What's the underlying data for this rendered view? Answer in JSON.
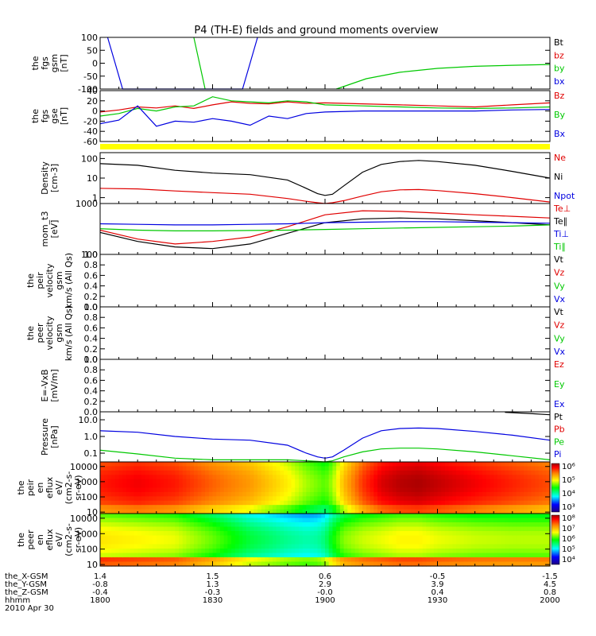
{
  "title": "P4 (TH-E) fields and ground moments overview",
  "colors": {
    "black": "#000000",
    "red": "#e00000",
    "green": "#00c800",
    "blue": "#0000e0",
    "yellow": "#ffff00"
  },
  "chart_data": [
    {
      "type": "line",
      "panel": "fgs_gsm",
      "ylabel_lines": [
        "the",
        "fgs",
        "gsm",
        "[nT]"
      ],
      "ylim": [
        -100,
        100
      ],
      "y_ticks": [
        "100",
        "50",
        "0",
        "-50",
        "-100"
      ],
      "legend": [
        {
          "label": "Bt",
          "color": "#000000"
        },
        {
          "label": "bz",
          "color": "#e00000"
        },
        {
          "label": "by",
          "color": "#00c800"
        },
        {
          "label": "bx",
          "color": "#0000e0"
        }
      ],
      "series": [
        {
          "name": "by",
          "color": "#00c800",
          "x": [
            0,
            25,
            28,
            55,
            63,
            71,
            80,
            90,
            100,
            110,
            120
          ],
          "y": [
            null,
            100,
            -100,
            null,
            -100,
            -60,
            -35,
            -20,
            -12,
            -8,
            -5
          ]
        },
        {
          "name": "bx",
          "color": "#0000e0",
          "x": [
            2,
            4,
            6,
            38,
            40,
            42
          ],
          "y": [
            100,
            0,
            -100,
            -100,
            0,
            100
          ]
        }
      ]
    },
    {
      "type": "line",
      "panel": "fgs_gse",
      "ylabel_lines": [
        "the",
        "fgs",
        "gse",
        "[nT]"
      ],
      "ylim": [
        -60,
        40
      ],
      "y_ticks": [
        "40",
        "20",
        "0",
        "-20",
        "-40",
        "-60"
      ],
      "legend": [
        {
          "label": "Bz",
          "color": "#e00000"
        },
        {
          "label": "By",
          "color": "#00c800"
        },
        {
          "label": "Bx",
          "color": "#0000e0"
        }
      ],
      "series": [
        {
          "name": "Bz",
          "color": "#e00000",
          "x": [
            0,
            5,
            10,
            15,
            20,
            25,
            30,
            35,
            40,
            45,
            50,
            55,
            60,
            70,
            80,
            90,
            100,
            110,
            120
          ],
          "y": [
            -2,
            2,
            8,
            6,
            10,
            5,
            12,
            18,
            15,
            14,
            18,
            15,
            16,
            14,
            12,
            10,
            8,
            12,
            16
          ]
        },
        {
          "name": "By",
          "color": "#00c800",
          "x": [
            0,
            5,
            10,
            15,
            20,
            25,
            30,
            35,
            40,
            45,
            50,
            55,
            60,
            70,
            80,
            90,
            100,
            110,
            120
          ],
          "y": [
            -10,
            -5,
            5,
            0,
            8,
            10,
            28,
            20,
            18,
            16,
            20,
            18,
            12,
            10,
            8,
            6,
            5,
            6,
            8
          ]
        },
        {
          "name": "Bx",
          "color": "#0000e0",
          "x": [
            0,
            5,
            10,
            15,
            20,
            25,
            30,
            35,
            40,
            45,
            50,
            55,
            60,
            70,
            80,
            90,
            100,
            110,
            120
          ],
          "y": [
            -25,
            -18,
            10,
            -30,
            -20,
            -22,
            -15,
            -20,
            -28,
            -10,
            -15,
            -5,
            -2,
            0,
            0,
            0,
            0,
            2,
            3
          ]
        }
      ]
    },
    {
      "type": "line",
      "panel": "density",
      "ylabel_lines": [
        "Density",
        "[cm-3]"
      ],
      "yscale": "log",
      "ylim": [
        0.5,
        200
      ],
      "y_ticks": [
        "100",
        "10",
        "1"
      ],
      "legend": [
        {
          "label": "Ne",
          "color": "#e00000"
        },
        {
          "label": "Ni",
          "color": "#000000"
        },
        {
          "label": "Npot",
          "color": "#0000e0"
        }
      ],
      "series": [
        {
          "name": "Ni",
          "color": "#000000",
          "x": [
            0,
            10,
            20,
            30,
            40,
            50,
            55,
            58,
            60,
            62,
            65,
            70,
            75,
            80,
            85,
            90,
            100,
            110,
            120
          ],
          "y": [
            55,
            45,
            25,
            18,
            15,
            8,
            3,
            1.6,
            1.3,
            1.5,
            4,
            20,
            50,
            70,
            80,
            70,
            45,
            22,
            10
          ]
        },
        {
          "name": "Ne",
          "color": "#e00000",
          "x": [
            0,
            10,
            20,
            30,
            40,
            50,
            55,
            58,
            60,
            62,
            65,
            70,
            75,
            80,
            85,
            90,
            100,
            110,
            120
          ],
          "y": [
            3,
            2.8,
            2.2,
            1.8,
            1.5,
            0.9,
            0.65,
            0.55,
            0.5,
            0.55,
            0.7,
            1.2,
            2,
            2.5,
            2.6,
            2.3,
            1.6,
            1,
            0.6
          ]
        }
      ]
    },
    {
      "type": "line",
      "panel": "temperature",
      "ylabel_lines": [
        "mom_t3",
        "[eV]"
      ],
      "yscale": "log",
      "ylim": [
        100,
        1000
      ],
      "y_ticks": [
        "1000",
        "100"
      ],
      "legend": [
        {
          "label": "Te⊥",
          "color": "#e00000"
        },
        {
          "label": "Te∥",
          "color": "#000000"
        },
        {
          "label": "Ti⊥",
          "color": "#0000e0"
        },
        {
          "label": "Ti∥",
          "color": "#00c800"
        }
      ],
      "series": [
        {
          "name": "Te⊥",
          "color": "#e00000",
          "x": [
            0,
            10,
            20,
            30,
            40,
            50,
            60,
            70,
            80,
            90,
            100,
            110,
            120
          ],
          "y": [
            300,
            200,
            160,
            180,
            220,
            350,
            600,
            720,
            700,
            650,
            600,
            560,
            520
          ]
        },
        {
          "name": "Te∥",
          "color": "#000000",
          "x": [
            0,
            10,
            20,
            30,
            40,
            50,
            60,
            70,
            80,
            90,
            100,
            110,
            120
          ],
          "y": [
            270,
            180,
            140,
            130,
            160,
            260,
            420,
            500,
            520,
            500,
            460,
            420,
            380
          ]
        },
        {
          "name": "Ti⊥",
          "color": "#0000e0",
          "x": [
            0,
            10,
            20,
            30,
            40,
            50,
            60,
            70,
            80,
            90,
            100,
            110,
            120
          ],
          "y": [
            400,
            390,
            380,
            380,
            390,
            400,
            420,
            430,
            440,
            440,
            430,
            420,
            410
          ]
        },
        {
          "name": "Ti∥",
          "color": "#00c800",
          "x": [
            0,
            10,
            20,
            30,
            40,
            50,
            60,
            70,
            80,
            90,
            100,
            110,
            120
          ],
          "y": [
            320,
            300,
            290,
            290,
            295,
            300,
            310,
            320,
            330,
            340,
            350,
            360,
            380
          ]
        }
      ]
    },
    {
      "type": "line",
      "panel": "peir_velocity",
      "ylabel_lines": [
        "the",
        "peir",
        "velocity",
        "gsm",
        "km/s (All Qs)"
      ],
      "ylim": [
        0,
        1
      ],
      "y_ticks": [
        "1.0",
        "0.8",
        "0.6",
        "0.4",
        "0.2",
        "0.0"
      ],
      "legend": [
        {
          "label": "Vt",
          "color": "#000000"
        },
        {
          "label": "Vz",
          "color": "#e00000"
        },
        {
          "label": "Vy",
          "color": "#00c800"
        },
        {
          "label": "Vx",
          "color": "#0000e0"
        }
      ],
      "series": []
    },
    {
      "type": "line",
      "panel": "peer_velocity",
      "ylabel_lines": [
        "the",
        "peer",
        "velocity",
        "gsm",
        "km/s (All Qs)"
      ],
      "ylim": [
        0,
        1
      ],
      "y_ticks": [
        "1.0",
        "0.8",
        "0.6",
        "0.4",
        "0.2",
        "0.0"
      ],
      "legend": [
        {
          "label": "Vt",
          "color": "#000000"
        },
        {
          "label": "Vz",
          "color": "#e00000"
        },
        {
          "label": "Vy",
          "color": "#00c800"
        },
        {
          "label": "Vx",
          "color": "#0000e0"
        }
      ],
      "series": []
    },
    {
      "type": "line",
      "panel": "efield",
      "ylabel_lines": [
        "E=-VxB",
        "[mV/m]"
      ],
      "ylim": [
        0,
        1
      ],
      "y_ticks": [
        "1.0",
        "0.8",
        "0.6",
        "0.4",
        "0.2",
        "0.0"
      ],
      "legend": [
        {
          "label": "Ez",
          "color": "#e00000"
        },
        {
          "label": "Ey",
          "color": "#00c800"
        },
        {
          "label": "Ex",
          "color": "#0000e0"
        }
      ],
      "series": []
    },
    {
      "type": "line",
      "panel": "pressure",
      "ylabel_lines": [
        "Pressure",
        "[nPa]"
      ],
      "yscale": "log",
      "ylim": [
        0.03,
        30
      ],
      "y_ticks": [
        "10.0",
        "1.0",
        "0.1"
      ],
      "legend": [
        {
          "label": "Pt",
          "color": "#000000"
        },
        {
          "label": "Pb",
          "color": "#e00000"
        },
        {
          "label": "Pe",
          "color": "#00c800"
        },
        {
          "label": "Pi",
          "color": "#0000e0"
        }
      ],
      "series": [
        {
          "name": "Pi",
          "color": "#0000e0",
          "x": [
            0,
            10,
            20,
            30,
            40,
            50,
            55,
            58,
            60,
            62,
            65,
            70,
            75,
            80,
            85,
            90,
            100,
            110,
            120
          ],
          "y": [
            2.2,
            1.8,
            1,
            0.7,
            0.6,
            0.3,
            0.1,
            0.06,
            0.05,
            0.06,
            0.15,
            0.8,
            2.2,
            3,
            3.2,
            3,
            2,
            1.2,
            0.6
          ]
        },
        {
          "name": "Pe",
          "color": "#00c800",
          "x": [
            0,
            10,
            20,
            30,
            40,
            50,
            55,
            58,
            60,
            62,
            65,
            70,
            75,
            80,
            85,
            90,
            100,
            110,
            120
          ],
          "y": [
            0.15,
            0.09,
            0.05,
            0.04,
            0.04,
            0.04,
            0.035,
            0.032,
            0.03,
            0.035,
            0.06,
            0.12,
            0.18,
            0.2,
            0.2,
            0.18,
            0.12,
            0.07,
            0.04
          ]
        },
        {
          "name": "Pt",
          "color": "#000000",
          "x": [
            108,
            114,
            120
          ],
          "y": [
            28,
            24,
            20
          ]
        }
      ]
    },
    {
      "type": "heatmap",
      "panel": "peir_spectrogram",
      "ylabel_lines": [
        "the",
        "peir",
        "en",
        "eflux",
        "eV/",
        "(cm2-s-",
        "sr-eV)"
      ],
      "yscale": "log",
      "ylim": [
        8,
        20000
      ],
      "y_ticks": [
        "10000",
        "1000",
        "100",
        "10"
      ],
      "colorbar_labels": [
        "10⁶",
        "10⁵",
        "10⁴",
        "10³"
      ],
      "x": [
        0,
        10,
        20,
        30,
        40,
        50,
        55,
        58,
        60,
        62,
        65,
        70,
        75,
        80,
        85,
        90,
        100,
        110,
        120
      ],
      "level": [
        0.85,
        0.88,
        0.85,
        0.78,
        0.72,
        0.62,
        0.55,
        0.52,
        0.5,
        0.55,
        0.68,
        0.82,
        0.9,
        0.93,
        0.94,
        0.92,
        0.88,
        0.84,
        0.8
      ]
    },
    {
      "type": "heatmap",
      "panel": "peer_spectrogram",
      "ylabel_lines": [
        "the",
        "peer",
        "en",
        "eflux",
        "eV/",
        "(cm2-s-",
        "sr-eV)"
      ],
      "yscale": "log",
      "ylim": [
        8,
        20000
      ],
      "y_ticks": [
        "10000",
        "1000",
        "100",
        "10"
      ],
      "colorbar_labels": [
        "10⁸",
        "10⁷",
        "10⁶",
        "10⁵",
        "10⁴"
      ],
      "x": [
        0,
        10,
        20,
        30,
        40,
        50,
        55,
        58,
        60,
        62,
        65,
        70,
        75,
        80,
        85,
        90,
        100,
        110,
        120
      ],
      "level": [
        0.62,
        0.6,
        0.58,
        0.5,
        0.4,
        0.34,
        0.32,
        0.33,
        0.36,
        0.44,
        0.52,
        0.56,
        0.58,
        0.6,
        0.6,
        0.58,
        0.56,
        0.55,
        0.55
      ]
    }
  ],
  "x_axis": {
    "row_labels": [
      "the_X-GSM",
      "the_Y-GSM",
      "the_Z-GSM",
      "hhmm",
      "2010 Apr 30"
    ],
    "ticks": [
      {
        "x": 0,
        "values": [
          "1.4",
          "-0.8",
          "-0.4",
          "1800"
        ]
      },
      {
        "x": 30,
        "values": [
          "1.5",
          "1.3",
          "-0.3",
          "1830"
        ]
      },
      {
        "x": 60,
        "values": [
          "0.6",
          "2.9",
          "-0.0",
          "1900"
        ]
      },
      {
        "x": 90,
        "values": [
          "-0.5",
          "3.9",
          "0.4",
          "1930"
        ]
      },
      {
        "x": 120,
        "values": [
          "-1.5",
          "4.5",
          "0.8",
          "2000"
        ]
      }
    ],
    "minor_every": 5
  }
}
